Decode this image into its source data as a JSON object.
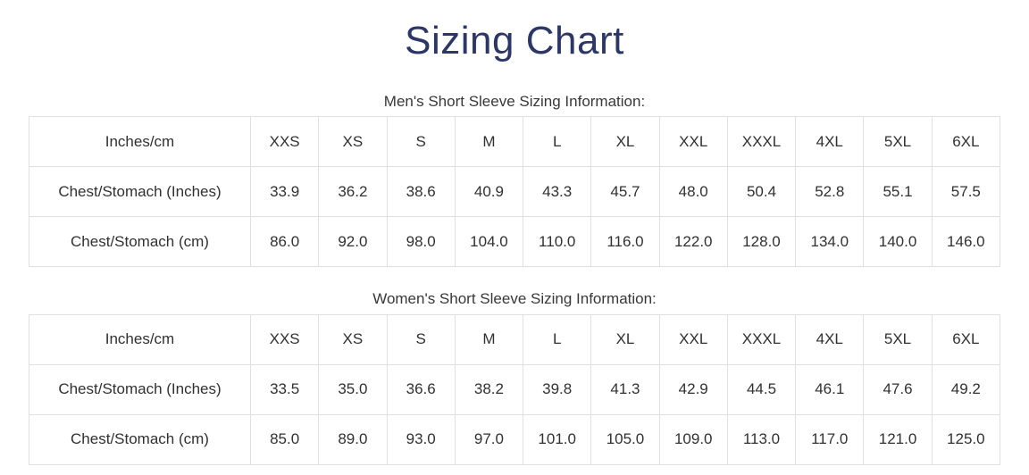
{
  "page": {
    "title": "Sizing Chart"
  },
  "colors": {
    "title": "#2d3767",
    "body_text": "#313131",
    "table_border": "#e0e0e0"
  },
  "tables": [
    {
      "caption": "Men's Short Sleeve Sizing Information:",
      "header": [
        "Inches/cm",
        "XXS",
        "XS",
        "S",
        "M",
        "L",
        "XL",
        "XXL",
        "XXXL",
        "4XL",
        "5XL",
        "6XL"
      ],
      "rows": [
        {
          "label": "Chest/Stomach (Inches)",
          "values": [
            "33.9",
            "36.2",
            "38.6",
            "40.9",
            "43.3",
            "45.7",
            "48.0",
            "50.4",
            "52.8",
            "55.1",
            "57.5"
          ]
        },
        {
          "label": "Chest/Stomach (cm)",
          "values": [
            "86.0",
            "92.0",
            "98.0",
            "104.0",
            "110.0",
            "116.0",
            "122.0",
            "128.0",
            "134.0",
            "140.0",
            "146.0"
          ]
        }
      ]
    },
    {
      "caption": "Women's Short Sleeve Sizing Information:",
      "header": [
        "Inches/cm",
        "XXS",
        "XS",
        "S",
        "M",
        "L",
        "XL",
        "XXL",
        "XXXL",
        "4XL",
        "5XL",
        "6XL"
      ],
      "rows": [
        {
          "label": "Chest/Stomach (Inches)",
          "values": [
            "33.5",
            "35.0",
            "36.6",
            "38.2",
            "39.8",
            "41.3",
            "42.9",
            "44.5",
            "46.1",
            "47.6",
            "49.2"
          ]
        },
        {
          "label": "Chest/Stomach (cm)",
          "values": [
            "85.0",
            "89.0",
            "93.0",
            "97.0",
            "101.0",
            "105.0",
            "109.0",
            "113.0",
            "117.0",
            "121.0",
            "125.0"
          ]
        }
      ]
    }
  ]
}
